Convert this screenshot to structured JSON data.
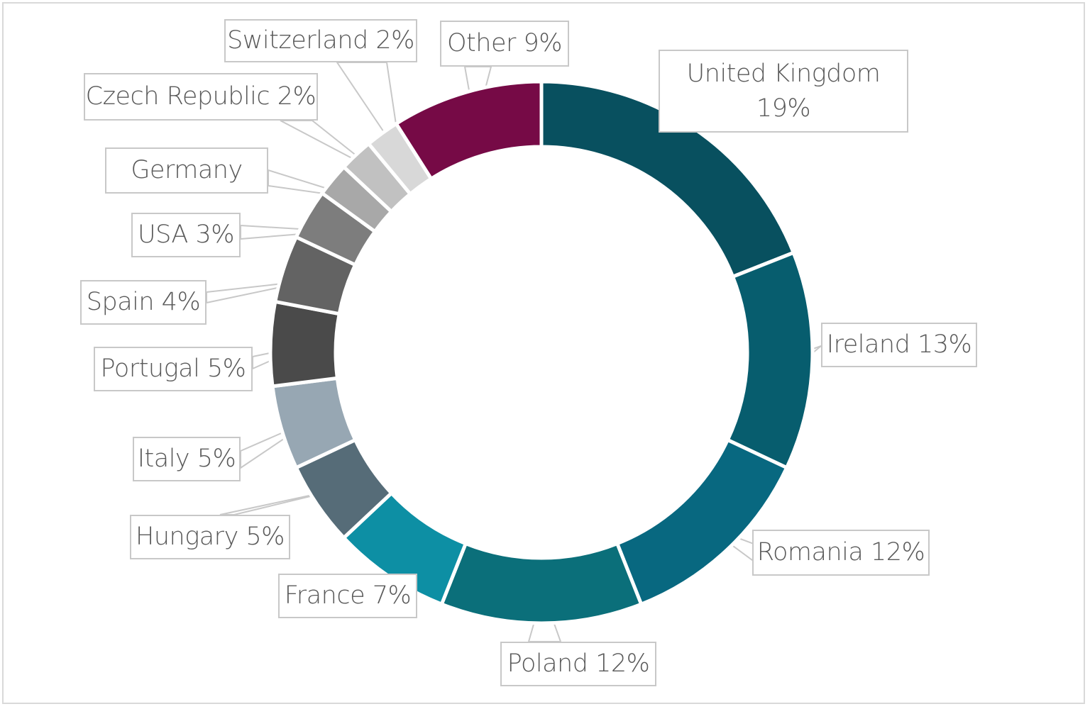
{
  "chart_data": {
    "type": "pie",
    "variant": "donut",
    "title": "",
    "slices": [
      {
        "name": "United Kingdom",
        "label_line1": "United Kingdom",
        "label_line2": "19%",
        "value": 19,
        "color": "#08505f"
      },
      {
        "name": "Ireland",
        "label": "Ireland 13%",
        "value": 13,
        "color": "#075d6e"
      },
      {
        "name": "Romania",
        "label": "Romania 12%",
        "value": 12,
        "color": "#086880"
      },
      {
        "name": "Poland",
        "label": "Poland 12%",
        "value": 12,
        "color": "#0b6f7a"
      },
      {
        "name": "France",
        "label": "France 7%",
        "value": 7,
        "color": "#0d8fa4"
      },
      {
        "name": "Hungary",
        "label": "Hungary 5%",
        "value": 5,
        "color": "#566c78"
      },
      {
        "name": "Italy",
        "label": "Italy 5%",
        "value": 5,
        "color": "#97a7b3"
      },
      {
        "name": "Portugal",
        "label": "Portugal 5%",
        "value": 5,
        "color": "#4a4a4a"
      },
      {
        "name": "Spain",
        "label": "Spain 4%",
        "value": 4,
        "color": "#636363"
      },
      {
        "name": "USA",
        "label": "USA 3%",
        "value": 3,
        "color": "#7d7d7d"
      },
      {
        "name": "Germany",
        "label": "Germany",
        "value": 2,
        "color": "#a8a8a8"
      },
      {
        "name": "Czech Republic",
        "label": "Czech Republic 2%",
        "value": 2,
        "color": "#c1c1c1"
      },
      {
        "name": "Switzerland",
        "label": "Switzerland 2%",
        "value": 2,
        "color": "#d8d8d8"
      },
      {
        "name": "Other",
        "label": "Other 9%",
        "value": 9,
        "color": "#760a46"
      }
    ]
  }
}
